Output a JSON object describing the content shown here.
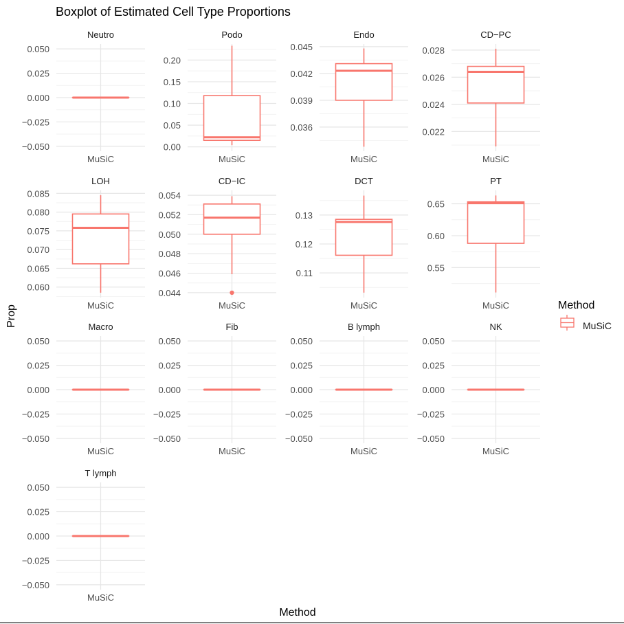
{
  "chart_data": {
    "type": "boxplot",
    "title": "Boxplot of Estimated Cell Type Proportions",
    "xlabel": "Method",
    "ylabel": "Prop",
    "legend": {
      "title": "Method",
      "position": "right",
      "entries": [
        {
          "name": "MuSiC",
          "color": "#F8766D"
        }
      ]
    },
    "grid": true,
    "facets": [
      {
        "name": "Neutro",
        "method": "MuSiC",
        "box": {
          "min": 0,
          "q1": 0,
          "median": 0,
          "q3": 0,
          "max": 0
        },
        "outliers": [],
        "ylim": [
          -0.055,
          0.055
        ],
        "ticks": [
          -0.05,
          -0.025,
          0,
          0.025,
          0.05
        ],
        "tick_labels": [
          "−0.050",
          "−0.025",
          "0.000",
          "0.025",
          "0.050"
        ]
      },
      {
        "name": "Podo",
        "method": "MuSiC",
        "box": {
          "min": 0.004,
          "q1": 0.015,
          "median": 0.022,
          "q3": 0.118,
          "max": 0.233
        },
        "outliers": [],
        "ylim": [
          -0.01,
          0.237
        ],
        "ticks": [
          0,
          0.05,
          0.1,
          0.15,
          0.2
        ],
        "tick_labels": [
          "0.00",
          "0.05",
          "0.10",
          "0.15",
          "0.20"
        ]
      },
      {
        "name": "Endo",
        "method": "MuSiC",
        "box": {
          "min": 0.0338,
          "q1": 0.039,
          "median": 0.0423,
          "q3": 0.0431,
          "max": 0.0448
        },
        "outliers": [],
        "ylim": [
          0.0333,
          0.0453
        ],
        "ticks": [
          0.036,
          0.039,
          0.042,
          0.045
        ],
        "tick_labels": [
          "0.036",
          "0.039",
          "0.042",
          "0.045"
        ]
      },
      {
        "name": "CD−PC",
        "method": "MuSiC",
        "box": {
          "min": 0.0209,
          "q1": 0.0241,
          "median": 0.0264,
          "q3": 0.0268,
          "max": 0.0281
        },
        "outliers": [],
        "ylim": [
          0.02055,
          0.02845
        ],
        "ticks": [
          0.022,
          0.024,
          0.026,
          0.028
        ],
        "tick_labels": [
          "0.022",
          "0.024",
          "0.026",
          "0.028"
        ]
      },
      {
        "name": "LOH",
        "method": "MuSiC",
        "box": {
          "min": 0.0585,
          "q1": 0.0662,
          "median": 0.0758,
          "q3": 0.0795,
          "max": 0.0845
        },
        "outliers": [],
        "ylim": [
          0.0572,
          0.0858
        ],
        "ticks": [
          0.06,
          0.065,
          0.07,
          0.075,
          0.08,
          0.085
        ],
        "tick_labels": [
          "0.060",
          "0.065",
          "0.070",
          "0.075",
          "0.080",
          "0.085"
        ]
      },
      {
        "name": "CD−IC",
        "method": "MuSiC",
        "box": {
          "min": 0.0459,
          "q1": 0.05,
          "median": 0.0517,
          "q3": 0.0531,
          "max": 0.0539
        },
        "outliers": [
          0.044
        ],
        "ylim": [
          0.0435,
          0.0545
        ],
        "ticks": [
          0.044,
          0.046,
          0.048,
          0.05,
          0.052,
          0.054
        ],
        "tick_labels": [
          "0.044",
          "0.046",
          "0.048",
          "0.050",
          "0.052",
          "0.054"
        ]
      },
      {
        "name": "DCT",
        "method": "MuSiC",
        "box": {
          "min": 0.1032,
          "q1": 0.1161,
          "median": 0.1276,
          "q3": 0.1285,
          "max": 0.1367
        },
        "outliers": [],
        "ylim": [
          0.1015,
          0.1385
        ],
        "ticks": [
          0.11,
          0.12,
          0.13
        ],
        "tick_labels": [
          "0.11",
          "0.12",
          "0.13"
        ]
      },
      {
        "name": "PT",
        "method": "MuSiC",
        "box": {
          "min": 0.511,
          "q1": 0.588,
          "median": 0.651,
          "q3": 0.653,
          "max": 0.663
        },
        "outliers": [],
        "ylim": [
          0.503,
          0.671
        ],
        "ticks": [
          0.55,
          0.6,
          0.65
        ],
        "tick_labels": [
          "0.55",
          "0.60",
          "0.65"
        ]
      },
      {
        "name": "Macro",
        "method": "MuSiC",
        "box": {
          "min": 0,
          "q1": 0,
          "median": 0,
          "q3": 0,
          "max": 0
        },
        "outliers": [],
        "ylim": [
          -0.055,
          0.055
        ],
        "ticks": [
          -0.05,
          -0.025,
          0,
          0.025,
          0.05
        ],
        "tick_labels": [
          "−0.050",
          "−0.025",
          "0.000",
          "0.025",
          "0.050"
        ]
      },
      {
        "name": "Fib",
        "method": "MuSiC",
        "box": {
          "min": 0,
          "q1": 0,
          "median": 0,
          "q3": 0,
          "max": 0
        },
        "outliers": [],
        "ylim": [
          -0.055,
          0.055
        ],
        "ticks": [
          -0.05,
          -0.025,
          0,
          0.025,
          0.05
        ],
        "tick_labels": [
          "−0.050",
          "−0.025",
          "0.000",
          "0.025",
          "0.050"
        ]
      },
      {
        "name": "B lymph",
        "method": "MuSiC",
        "box": {
          "min": 0,
          "q1": 0,
          "median": 0,
          "q3": 0,
          "max": 0
        },
        "outliers": [],
        "ylim": [
          -0.055,
          0.055
        ],
        "ticks": [
          -0.05,
          -0.025,
          0,
          0.025,
          0.05
        ],
        "tick_labels": [
          "−0.050",
          "−0.025",
          "0.000",
          "0.025",
          "0.050"
        ]
      },
      {
        "name": "NK",
        "method": "MuSiC",
        "box": {
          "min": 0,
          "q1": 0,
          "median": 0,
          "q3": 0,
          "max": 0
        },
        "outliers": [],
        "ylim": [
          -0.055,
          0.055
        ],
        "ticks": [
          -0.05,
          -0.025,
          0,
          0.025,
          0.05
        ],
        "tick_labels": [
          "−0.050",
          "−0.025",
          "0.000",
          "0.025",
          "0.050"
        ]
      },
      {
        "name": "T lymph",
        "method": "MuSiC",
        "box": {
          "min": 0,
          "q1": 0,
          "median": 0,
          "q3": 0,
          "max": 0
        },
        "outliers": [],
        "ylim": [
          -0.055,
          0.055
        ],
        "ticks": [
          -0.05,
          -0.025,
          0,
          0.025,
          0.05
        ],
        "tick_labels": [
          "−0.050",
          "−0.025",
          "0.000",
          "0.025",
          "0.050"
        ]
      }
    ]
  }
}
